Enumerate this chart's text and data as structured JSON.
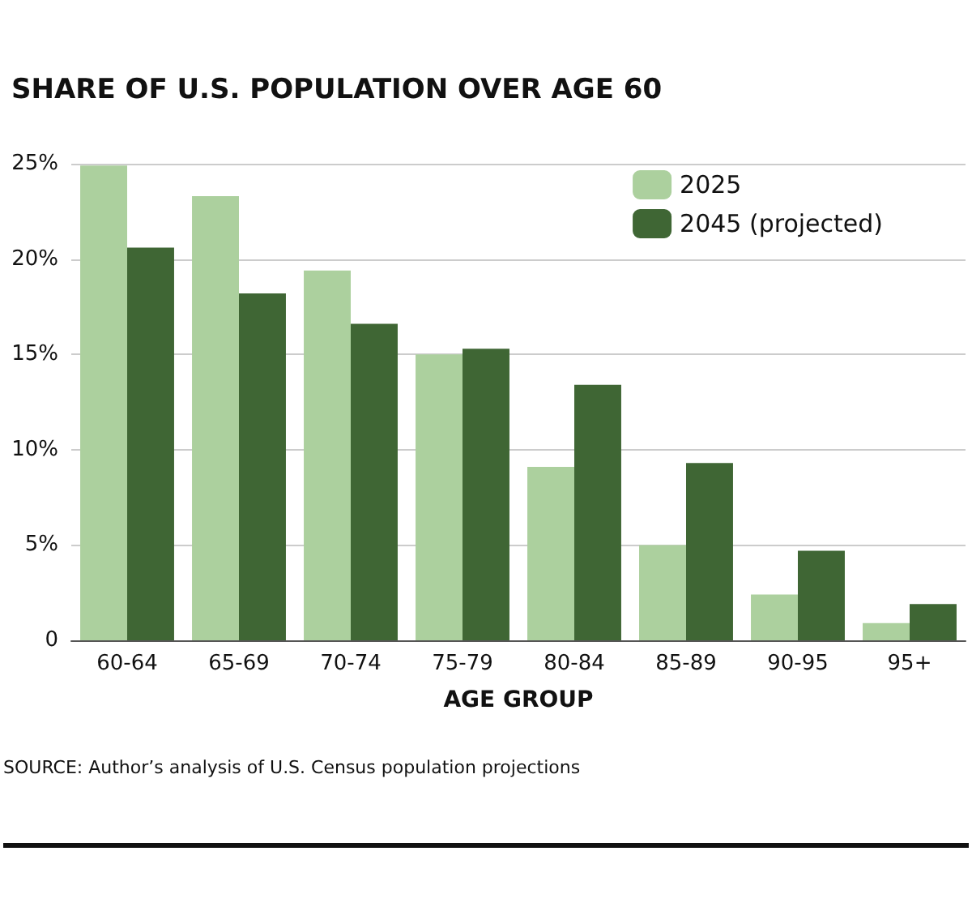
{
  "chart_data": {
    "type": "bar",
    "title": "SHARE OF U.S. POPULATION OVER AGE 60",
    "xlabel": "AGE GROUP",
    "categories": [
      "60-64",
      "65-69",
      "70-74",
      "75-79",
      "80-84",
      "85-89",
      "90-95",
      "95+"
    ],
    "series": [
      {
        "name": "2025",
        "color": "#acd09e",
        "values": [
          24.9,
          23.3,
          19.4,
          15.0,
          9.1,
          5.0,
          2.4,
          0.9
        ]
      },
      {
        "name": "2045 (projected)",
        "color": "#3f6634",
        "values": [
          20.6,
          18.2,
          16.6,
          15.3,
          13.4,
          9.3,
          4.7,
          1.9
        ]
      }
    ],
    "ylim": [
      0,
      25
    ],
    "yticks": [
      {
        "value": 0,
        "label": "0"
      },
      {
        "value": 5,
        "label": "5%"
      },
      {
        "value": 10,
        "label": "10%"
      },
      {
        "value": 15,
        "label": "15%"
      },
      {
        "value": 20,
        "label": "20%"
      },
      {
        "value": 25,
        "label": "25%"
      }
    ],
    "grid": "y",
    "legend": "top right",
    "annotations": [
      "SOURCE: Author’s analysis of U.S. Census population projections"
    ]
  }
}
